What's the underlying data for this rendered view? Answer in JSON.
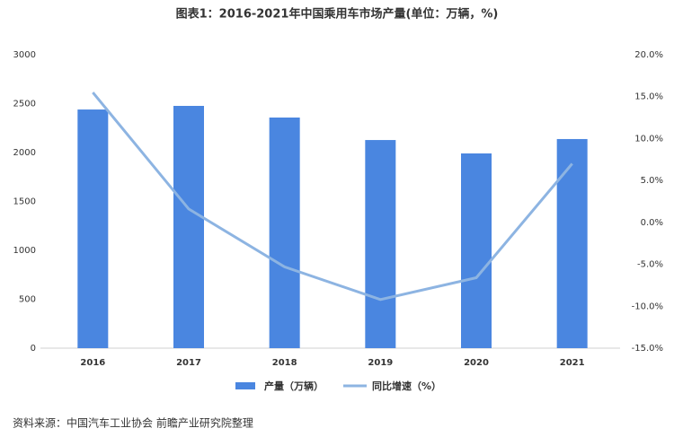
{
  "chart_data": {
    "type": "bar",
    "title": "图表1：2016-2021年中国乘用车市场产量(单位：万辆，%)",
    "categories": [
      "2016",
      "2017",
      "2018",
      "2019",
      "2020",
      "2021"
    ],
    "series": [
      {
        "name": "产量（万辆）",
        "color": "#4a86e0",
        "type": "bar",
        "values": [
          2440,
          2477,
          2358,
          2128,
          1991,
          2138
        ]
      },
      {
        "name": "同比增速（%）",
        "color": "#8db4e2",
        "type": "line",
        "axis": "y2",
        "values": [
          15.5,
          1.6,
          -5.3,
          -9.2,
          -6.6,
          7.0
        ]
      }
    ],
    "ylim": [
      0,
      3000
    ],
    "yticks": [
      0,
      500,
      1000,
      1500,
      2000,
      2500,
      3000
    ],
    "y2lim": [
      -15,
      20
    ],
    "y2ticks": [
      {
        "value": -15,
        "label": "-15.0%"
      },
      {
        "value": -10,
        "label": "-10.0%"
      },
      {
        "value": -5,
        "label": "-5.0%"
      },
      {
        "value": 0,
        "label": "0.0%"
      },
      {
        "value": 5,
        "label": "5.0%"
      },
      {
        "value": 10,
        "label": "10.0%"
      },
      {
        "value": 15,
        "label": "15.0%"
      },
      {
        "value": 20,
        "label": "20.0%"
      }
    ],
    "source": "资料来源：中国汽车工业协会 前瞻产业研究院整理"
  }
}
